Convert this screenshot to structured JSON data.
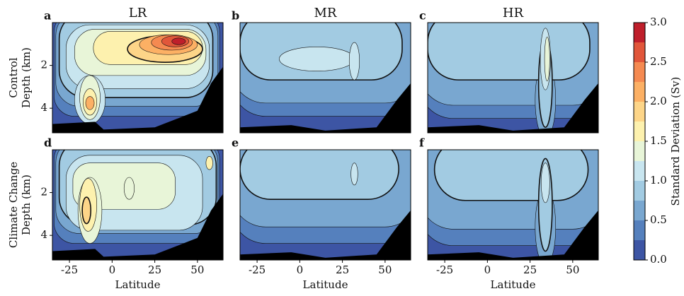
{
  "chart_data": [
    {
      "type": "contour",
      "label": "a",
      "title": "LR",
      "row_label": "Control",
      "ylabel": "Depth (km)",
      "xlim": [
        -35,
        65
      ],
      "ylim": [
        0,
        5.15
      ],
      "yticks": [
        2,
        4
      ]
    },
    {
      "type": "contour",
      "label": "b",
      "title": "MR",
      "xlim": [
        -35,
        65
      ],
      "ylim": [
        0,
        5.15
      ]
    },
    {
      "type": "contour",
      "label": "c",
      "title": "HR",
      "xlim": [
        -35,
        65
      ],
      "ylim": [
        0,
        5.15
      ]
    },
    {
      "type": "contour",
      "label": "d",
      "row_label": "Climate Change",
      "ylabel": "Depth (km)",
      "xlabel": "Latitude",
      "xlim": [
        -35,
        65
      ],
      "ylim": [
        0,
        5.15
      ],
      "xticks": [
        -25,
        0,
        25,
        50
      ],
      "yticks": [
        2,
        4
      ]
    },
    {
      "type": "contour",
      "label": "e",
      "xlabel": "Latitude",
      "xlim": [
        -35,
        65
      ],
      "ylim": [
        0,
        5.15
      ],
      "xticks": [
        -25,
        0,
        25,
        50
      ]
    },
    {
      "type": "contour",
      "label": "f",
      "xlabel": "Latitude",
      "xlim": [
        -35,
        65
      ],
      "ylim": [
        0,
        5.15
      ],
      "xticks": [
        -25,
        0,
        25,
        50
      ]
    }
  ],
  "colorbar": {
    "label": "Standard Deviation (Sv)",
    "levels": [
      0,
      0.25,
      0.5,
      0.75,
      1,
      1.25,
      1.5,
      1.75,
      2,
      2.25,
      2.5,
      2.75,
      3
    ],
    "colors": [
      "#3d55a4",
      "#5580bd",
      "#79a7d0",
      "#a2cbe2",
      "#c8e5ef",
      "#e8f5d8",
      "#fdf1ae",
      "#fdd588",
      "#fcb064",
      "#f58a51",
      "#e1563a",
      "#bf1f2b"
    ],
    "ticks": [
      {
        "value": 0,
        "label": "0.0"
      },
      {
        "value": 0.5,
        "label": "0.5"
      },
      {
        "value": 1,
        "label": "1.0"
      },
      {
        "value": 1.5,
        "label": "1.5"
      },
      {
        "value": 2,
        "label": "2.0"
      },
      {
        "value": 2.5,
        "label": "2.5"
      },
      {
        "value": 3,
        "label": "3.0"
      }
    ]
  }
}
